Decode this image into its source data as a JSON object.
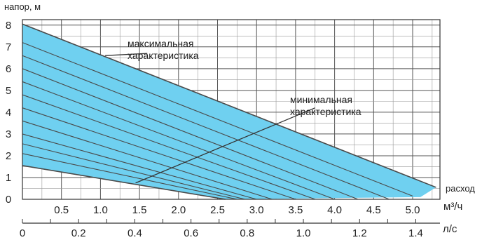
{
  "chart_data": {
    "type": "area",
    "ylabel": "напор, м",
    "x_axis_title": "расход",
    "x_unit_primary": "м³/ч",
    "x_unit_secondary": "л/с",
    "x_ticks_primary": [
      "0.5",
      "1.0",
      "1.5",
      "2.0",
      "2.5",
      "3.0",
      "3.5",
      "4.0",
      "4.5",
      "5.0"
    ],
    "x_ticks_secondary": [
      "0",
      "0.2",
      "0.4",
      "0.6",
      "0.8",
      "1.0",
      "1.2",
      "1.4"
    ],
    "y_ticks": [
      "0",
      "1",
      "2",
      "3",
      "4",
      "5",
      "6",
      "7",
      "8"
    ],
    "xlim": [
      0,
      5.35
    ],
    "ylim": [
      0,
      8.25
    ],
    "grid": true,
    "band_color": "#6fd0f0",
    "curve_color": "#4a4a4a",
    "max_curve": {
      "x": [
        0,
        5.3
      ],
      "y": [
        8.05,
        0.55
      ]
    },
    "min_curve": {
      "x": [
        0,
        2.6
      ],
      "y": [
        1.55,
        0
      ]
    },
    "inner_curves": [
      {
        "x": [
          0,
          5.0
        ],
        "y": [
          7.2,
          0.15
        ]
      },
      {
        "x": [
          0,
          4.7
        ],
        "y": [
          6.6,
          0
        ]
      },
      {
        "x": [
          0,
          4.3
        ],
        "y": [
          6.0,
          0
        ]
      },
      {
        "x": [
          0,
          4.0
        ],
        "y": [
          5.4,
          0
        ]
      },
      {
        "x": [
          0,
          3.75
        ],
        "y": [
          4.8,
          0
        ]
      },
      {
        "x": [
          0,
          3.5
        ],
        "y": [
          4.2,
          0
        ]
      },
      {
        "x": [
          0,
          3.2
        ],
        "y": [
          3.6,
          0
        ]
      },
      {
        "x": [
          0,
          3.0
        ],
        "y": [
          3.0,
          0
        ]
      },
      {
        "x": [
          0,
          2.85
        ],
        "y": [
          2.55,
          0
        ]
      },
      {
        "x": [
          0,
          2.75
        ],
        "y": [
          2.1,
          0
        ]
      }
    ],
    "annotations": [
      {
        "text": "максимальная характеристика",
        "line_from": [
          1.6,
          6.7
        ],
        "line_to": [
          1.06,
          6.6
        ]
      },
      {
        "text": "минимальная характеристика",
        "line_from": [
          3.75,
          4.2
        ],
        "line_to": [
          1.45,
          0.75
        ]
      }
    ]
  }
}
